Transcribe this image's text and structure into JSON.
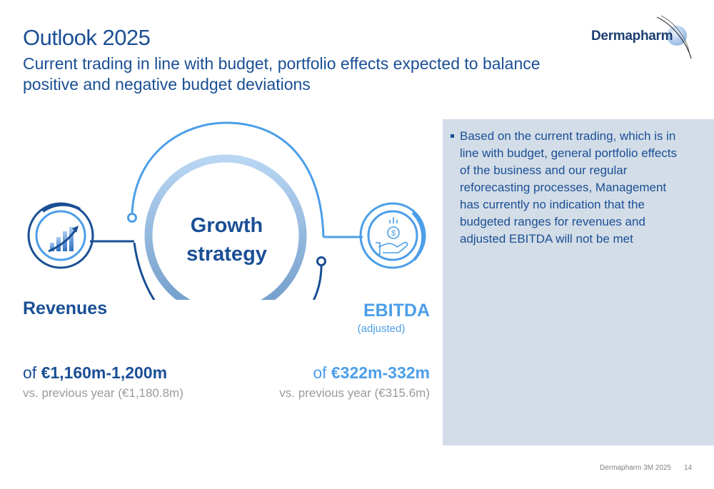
{
  "header": {
    "title": "Outlook 2025",
    "subtitle": "Current trading in line with budget, portfolio effects expected to balance positive and negative budget deviations"
  },
  "logo": {
    "text": "Dermapharm"
  },
  "diagram": {
    "center_label_line1": "Growth",
    "center_label_line2": "strategy",
    "revenues": {
      "icon": "growth-chart-icon",
      "label": "Revenues",
      "value_prefix": "of ",
      "value": "€1,160m-1,200m",
      "previous": "vs. previous year (€1,180.8m)"
    },
    "ebitda": {
      "icon": "money-hand-icon",
      "label": "EBITDA",
      "sublabel": "(adjusted)",
      "value_prefix": "of ",
      "value": "€322m-332m",
      "previous": "vs. previous year (€315.6m)"
    }
  },
  "note": {
    "text": "Based on the current trading, which is in line with budget, general portfolio effects of the business and our regular reforecasting processes, Management has currently no indication that the budgeted ranges for revenues and adjusted EBITDA will not be met"
  },
  "footer": {
    "source": "Dermapharm 3M 2025",
    "page": "14"
  },
  "colors": {
    "dark_blue": "#1a4f95",
    "light_blue": "#4c9ee8",
    "panel": "#d3dde8"
  }
}
